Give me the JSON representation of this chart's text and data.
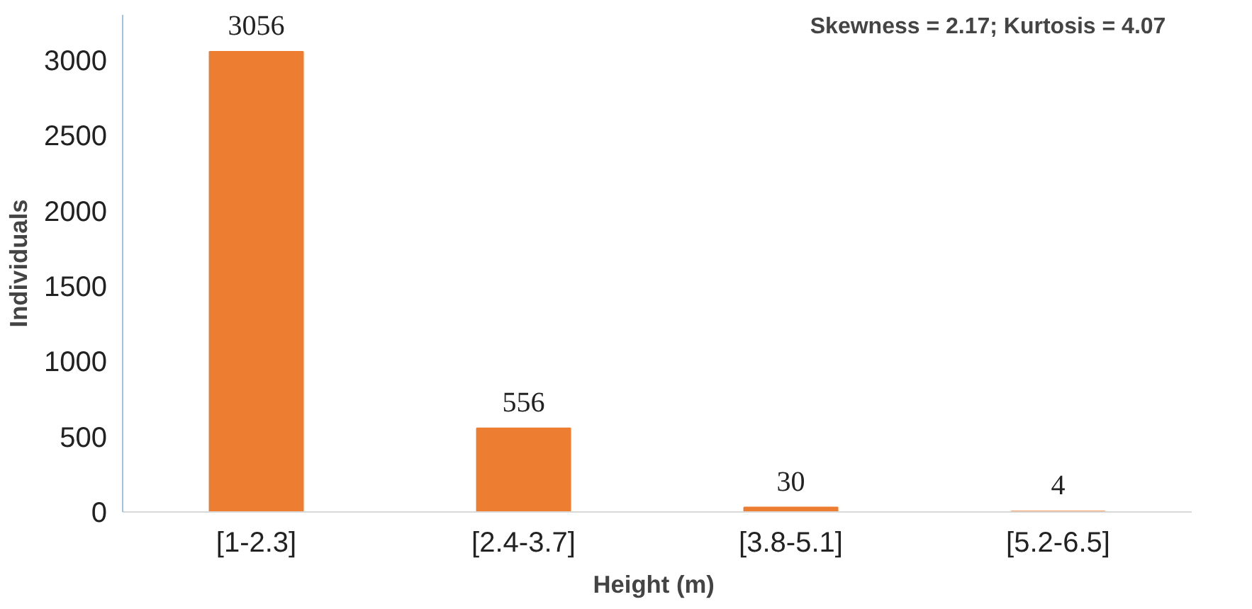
{
  "chart_data": {
    "type": "bar",
    "xlabel": "Height  (m)",
    "ylabel": "Individuals",
    "categories": [
      "[1-2.3]",
      "[2.4-3.7]",
      "[3.8-5.1]",
      "[5.2-6.5]"
    ],
    "values": [
      3056,
      556,
      30,
      4
    ],
    "color": "#ed7d31",
    "ylim": [
      0,
      3300
    ],
    "yticks": [
      0,
      500,
      1000,
      1500,
      2000,
      2500,
      3000
    ],
    "grid": false,
    "data_labels": true,
    "annotations": [
      "Skewness = 2.17;   Kurtosis = 4.07"
    ]
  }
}
